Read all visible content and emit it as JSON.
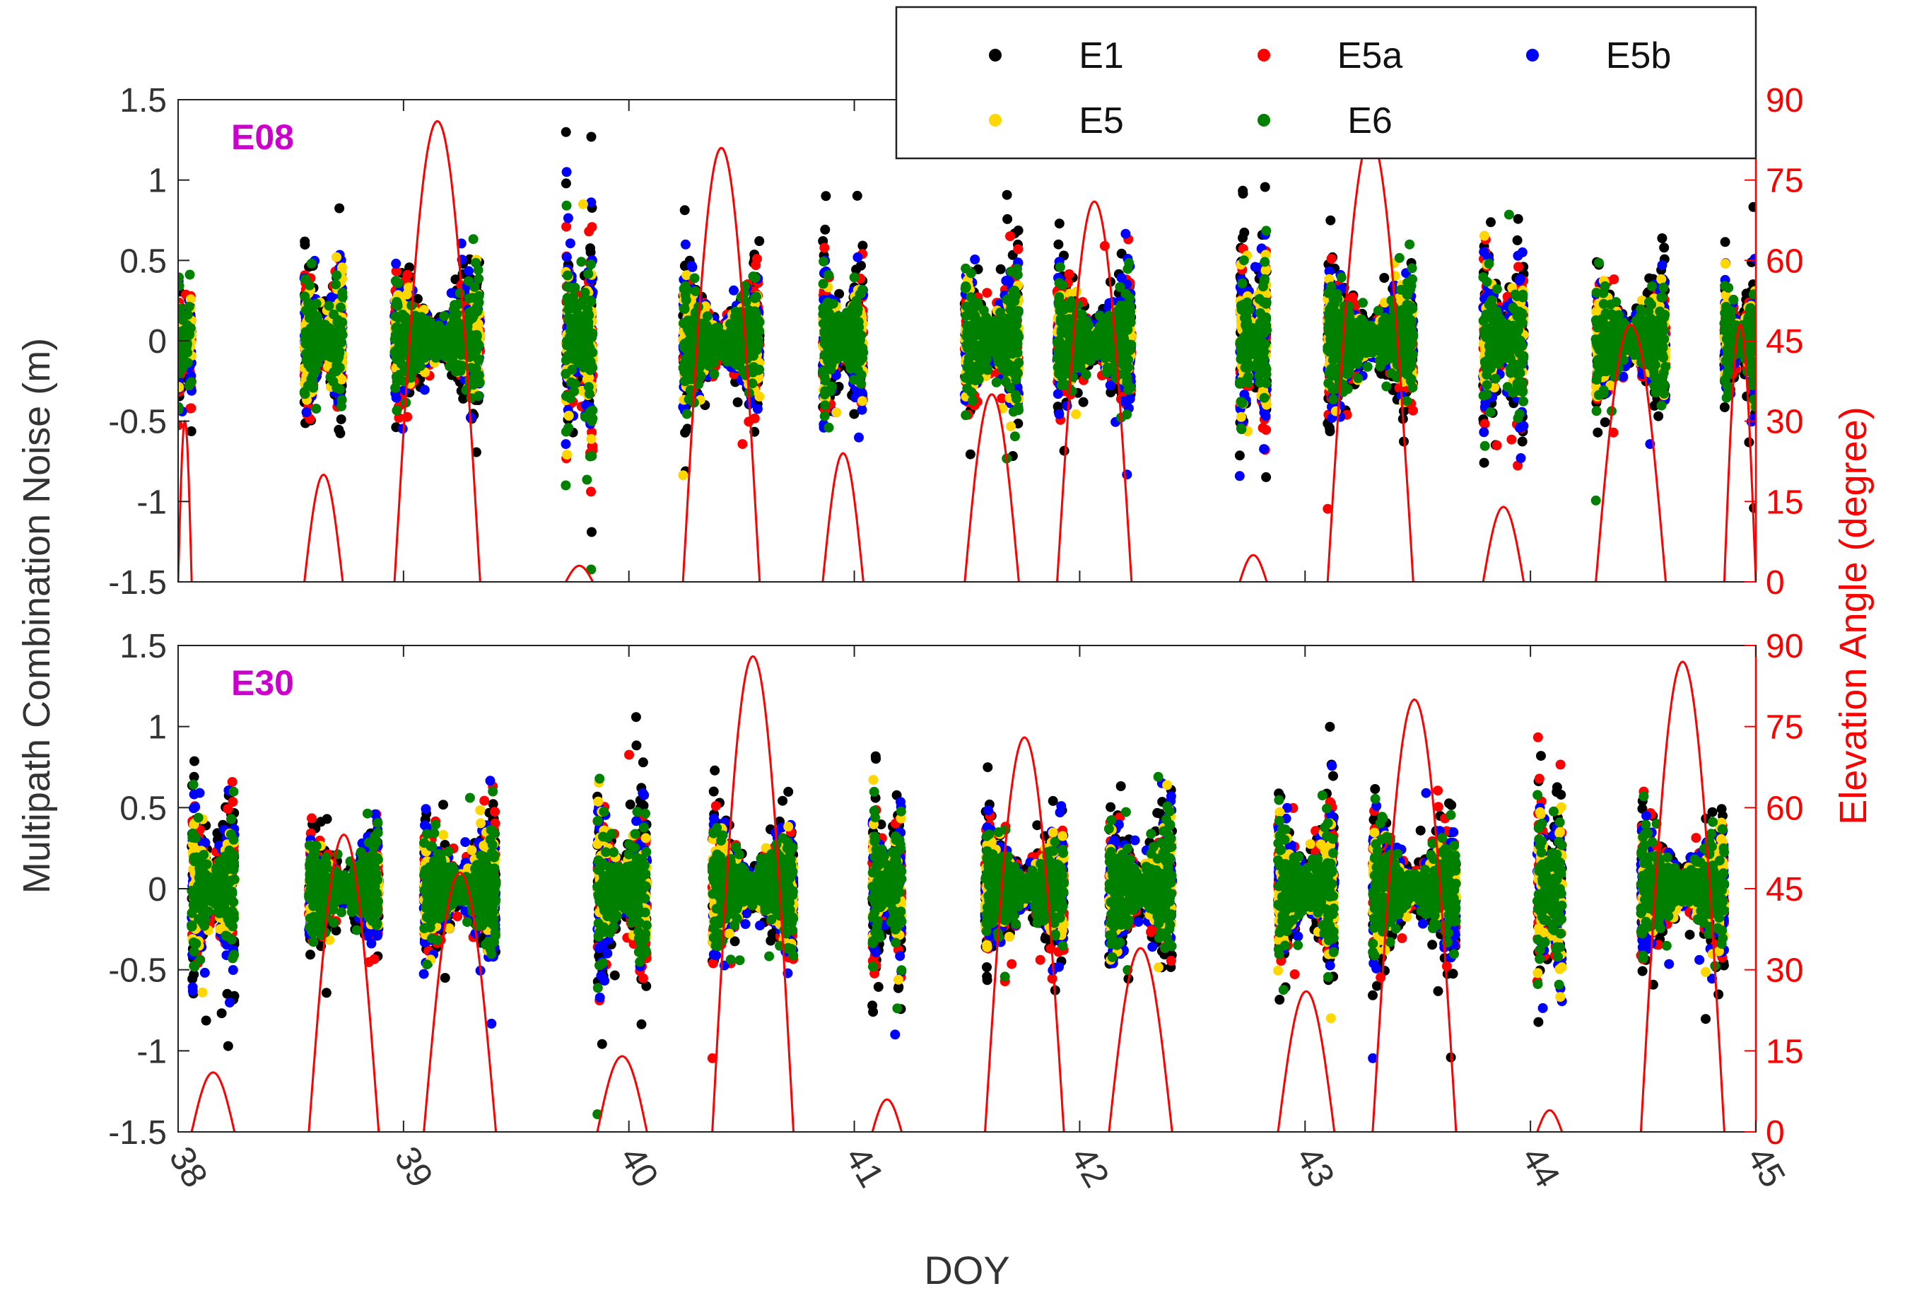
{
  "chart_data": {
    "type": "scatter",
    "xlabel": "DOY",
    "ylabel": "Multipath Combination Noise (m)",
    "y2label": "Elevation Angle (degree)",
    "xlim": [
      38,
      45
    ],
    "ylim": [
      -1.5,
      1.5
    ],
    "y2lim": [
      0,
      90
    ],
    "xticks": [
      "38",
      "39",
      "40",
      "41",
      "42",
      "43",
      "44",
      "45"
    ],
    "yticks": [
      "1.5",
      "1",
      "0.5",
      "0",
      "-0.5",
      "-1",
      "-1.5"
    ],
    "y2ticks": [
      "90",
      "75",
      "60",
      "45",
      "30",
      "15",
      "0"
    ],
    "legend": {
      "position": "top-right",
      "entries": [
        {
          "name": "E1",
          "color": "#000000"
        },
        {
          "name": "E5a",
          "color": "#ff0000"
        },
        {
          "name": "E5b",
          "color": "#0000ff"
        },
        {
          "name": "E5",
          "color": "#ffd700"
        },
        {
          "name": "E6",
          "color": "#008000"
        }
      ]
    },
    "elevation_color": "#ff0000",
    "label_color": "#cc00cc",
    "panels": [
      {
        "label": "E08",
        "passes": [
          {
            "start": 38.0,
            "end": 38.06,
            "peak": 30,
            "noise": 0.5
          },
          {
            "start": 38.56,
            "end": 38.73,
            "peak": 20,
            "noise": 0.6
          },
          {
            "start": 38.96,
            "end": 39.34,
            "peak": 86,
            "noise": 0.5
          },
          {
            "start": 39.72,
            "end": 39.84,
            "peak": 3,
            "noise": 0.9
          },
          {
            "start": 40.24,
            "end": 40.58,
            "peak": 81,
            "noise": 0.5
          },
          {
            "start": 40.86,
            "end": 41.04,
            "peak": 24,
            "noise": 0.6
          },
          {
            "start": 41.49,
            "end": 41.73,
            "peak": 35,
            "noise": 0.6
          },
          {
            "start": 41.9,
            "end": 42.23,
            "peak": 71,
            "noise": 0.5
          },
          {
            "start": 42.71,
            "end": 42.83,
            "peak": 5,
            "noise": 0.8
          },
          {
            "start": 43.1,
            "end": 43.48,
            "peak": 83,
            "noise": 0.5
          },
          {
            "start": 43.79,
            "end": 43.97,
            "peak": 14,
            "noise": 0.7
          },
          {
            "start": 44.29,
            "end": 44.6,
            "peak": 48,
            "noise": 0.5
          },
          {
            "start": 44.86,
            "end": 45.0,
            "peak": 48,
            "noise": 0.5
          }
        ]
      },
      {
        "label": "E30",
        "passes": [
          {
            "start": 38.06,
            "end": 38.25,
            "peak": 11,
            "noise": 0.7
          },
          {
            "start": 38.58,
            "end": 38.89,
            "peak": 55,
            "noise": 0.45
          },
          {
            "start": 39.09,
            "end": 39.41,
            "peak": 48,
            "noise": 0.5
          },
          {
            "start": 39.86,
            "end": 40.08,
            "peak": 14,
            "noise": 0.7
          },
          {
            "start": 40.37,
            "end": 40.73,
            "peak": 88,
            "noise": 0.5
          },
          {
            "start": 41.08,
            "end": 41.21,
            "peak": 6,
            "noise": 0.7
          },
          {
            "start": 41.58,
            "end": 41.93,
            "peak": 73,
            "noise": 0.5
          },
          {
            "start": 42.13,
            "end": 42.41,
            "peak": 34,
            "noise": 0.6
          },
          {
            "start": 42.88,
            "end": 43.13,
            "peak": 26,
            "noise": 0.6
          },
          {
            "start": 43.3,
            "end": 43.67,
            "peak": 80,
            "noise": 0.5
          },
          {
            "start": 44.03,
            "end": 44.14,
            "peak": 4,
            "noise": 0.8
          },
          {
            "start": 44.49,
            "end": 44.86,
            "peak": 87,
            "noise": 0.5
          }
        ]
      }
    ]
  }
}
